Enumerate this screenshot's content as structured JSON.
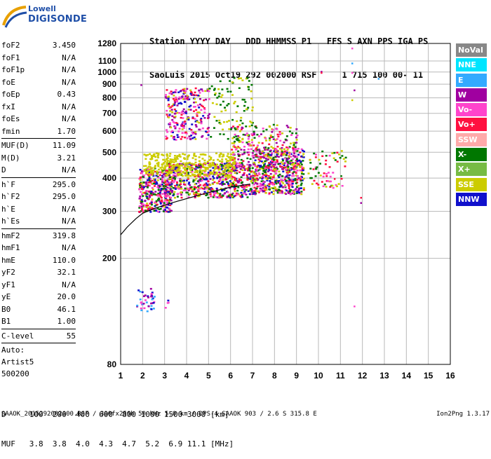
{
  "logo": {
    "brand": "Lowell",
    "product": "DIGISONDE"
  },
  "header": {
    "line1": "Station YYYY DAY   DDD HHMMSS P1   FFS S AXN PPS IGA PS",
    "line2": "SaoLuis 2015 Oct19 292 002000 RSF     1 715 100 00- 11"
  },
  "params": [
    {
      "label": "foF2",
      "value": "3.450"
    },
    {
      "label": "foF1",
      "value": "N/A"
    },
    {
      "label": "foF1p",
      "value": "N/A"
    },
    {
      "label": "foE",
      "value": "N/A"
    },
    {
      "label": "foEp",
      "value": "0.43"
    },
    {
      "label": "fxI",
      "value": "N/A"
    },
    {
      "label": "foEs",
      "value": "N/A"
    },
    {
      "label": "fmin",
      "value": "1.70"
    },
    {
      "sep": true
    },
    {
      "label": "MUF(D)",
      "value": "11.09"
    },
    {
      "label": "M(D)",
      "value": "3.21"
    },
    {
      "label": "D",
      "value": "N/A"
    },
    {
      "sep": true
    },
    {
      "label": "h`F",
      "value": "295.0"
    },
    {
      "label": "h`F2",
      "value": "295.0"
    },
    {
      "label": "h`E",
      "value": "N/A"
    },
    {
      "label": "h`Es",
      "value": "N/A"
    },
    {
      "sep": true
    },
    {
      "label": "hmF2",
      "value": "319.8"
    },
    {
      "label": "hmF1",
      "value": "N/A"
    },
    {
      "label": "hmE",
      "value": "110.0"
    },
    {
      "label": "yF2",
      "value": "32.1"
    },
    {
      "label": "yF1",
      "value": "N/A"
    },
    {
      "label": "yE",
      "value": "20.0"
    },
    {
      "label": "B0",
      "value": "46.1"
    },
    {
      "label": "B1",
      "value": "1.00"
    },
    {
      "sep": true
    },
    {
      "label": "C-level",
      "value": "55"
    },
    {
      "sep": true
    },
    {
      "text": "Auto:"
    },
    {
      "text": "Artist5"
    },
    {
      "text": "500200"
    }
  ],
  "legend": [
    {
      "label": "NoVal",
      "bg": "#888888",
      "fg": "#ffffff"
    },
    {
      "label": "NNE",
      "bg": "#00e5ff",
      "fg": "#ffffff"
    },
    {
      "label": "E",
      "bg": "#33aaff",
      "fg": "#ffffff"
    },
    {
      "label": "W",
      "bg": "#a000a0",
      "fg": "#ffffff"
    },
    {
      "label": "Vo-",
      "bg": "#ff44cc",
      "fg": "#ffffff"
    },
    {
      "label": "Vo+",
      "bg": "#ff1040",
      "fg": "#ffffff"
    },
    {
      "label": "SSW",
      "bg": "#ffaaaa",
      "fg": "#ffffff"
    },
    {
      "label": "X-",
      "bg": "#007700",
      "fg": "#ffffff"
    },
    {
      "label": "X+",
      "bg": "#77bb44",
      "fg": "#ffffff"
    },
    {
      "label": "SSE",
      "bg": "#cccc00",
      "fg": "#ffffff"
    },
    {
      "label": "NNW",
      "bg": "#1010cc",
      "fg": "#ffffff"
    }
  ],
  "footer": {
    "line1": "D     100  200  400  600  800 1000 1500 3000 [km]",
    "line2": "MUF   3.8  3.8  4.0  4.3  4.7  5.2  6.9 11.1 [MHz]"
  },
  "bottom": {
    "left": "SAAOK_2015292002000.RSF / 300fx256h 50 kHz 5.0 km / DPS-4 SAAOK 903 / 2.6 S 315.8 E",
    "right": "Ion2Png 1.3.17"
  },
  "chart_data": {
    "type": "scatter",
    "title": "",
    "xlabel": "",
    "ylabel": "",
    "xlim": [
      1,
      16
    ],
    "ylim": [
      80,
      1280
    ],
    "y_scale": "log",
    "grid": true,
    "x_ticks": [
      1,
      2,
      3,
      4,
      5,
      6,
      7,
      8,
      9,
      10,
      11,
      12,
      13,
      14,
      15,
      16
    ],
    "y_ticks": [
      80,
      200,
      300,
      400,
      500,
      600,
      700,
      800,
      900,
      1000,
      1100,
      1280
    ],
    "trace_curve": {
      "color": "#000000",
      "x": [
        1.0,
        1.3,
        1.7,
        2.0,
        2.5,
        3.0,
        3.5,
        4.0,
        5.0,
        6.0,
        6.9
      ],
      "y": [
        245,
        262,
        282,
        295,
        307,
        317,
        326,
        335,
        353,
        370,
        380
      ]
    },
    "echo_regions": [
      {
        "name": "E-layer",
        "f": [
          1.7,
          2.5
        ],
        "h": [
          125,
          155
        ],
        "colors": [
          "#1010cc",
          "#a000a0",
          "#33aaff",
          "#ff44cc"
        ],
        "n": 40
      },
      {
        "name": "E-layer-2",
        "f": [
          3.0,
          3.2
        ],
        "h": [
          128,
          142
        ],
        "colors": [
          "#1010cc",
          "#ff44cc"
        ],
        "n": 4
      },
      {
        "name": "F-trace-main",
        "f": [
          1.8,
          3.3
        ],
        "h": [
          300,
          440
        ],
        "colors": [
          "#ff1040",
          "#ff44cc",
          "#a000a0",
          "#1010cc",
          "#cccc00",
          "#007700"
        ],
        "n": 380
      },
      {
        "name": "F-trace-mid",
        "f": [
          3.0,
          7.0
        ],
        "h": [
          340,
          460
        ],
        "colors": [
          "#ff1040",
          "#ff44cc",
          "#a000a0",
          "#1010cc",
          "#007700",
          "#cccc00"
        ],
        "n": 650
      },
      {
        "name": "F-trace-high",
        "f": [
          7.0,
          9.3
        ],
        "h": [
          350,
          520
        ],
        "colors": [
          "#ff1040",
          "#ff44cc",
          "#a000a0",
          "#007700",
          "#1010cc",
          "#cccc00"
        ],
        "n": 550
      },
      {
        "name": "F-spread-upper",
        "f": [
          6.0,
          9.0
        ],
        "h": [
          430,
          640
        ],
        "colors": [
          "#007700",
          "#cccc00",
          "#ff1040",
          "#a000a0",
          "#ff44cc"
        ],
        "n": 260
      },
      {
        "name": "SSE-band",
        "f": [
          2.0,
          6.2
        ],
        "h": [
          410,
          500
        ],
        "colors": [
          "#cccc00"
        ],
        "n": 340
      },
      {
        "name": "upper-cloud",
        "f": [
          3.0,
          5.0
        ],
        "h": [
          560,
          880
        ],
        "colors": [
          "#cccc00",
          "#a000a0",
          "#ff44cc",
          "#ff1040",
          "#1010cc"
        ],
        "n": 260
      },
      {
        "name": "upper-cloud-2",
        "f": [
          5.0,
          7.0
        ],
        "h": [
          560,
          960
        ],
        "colors": [
          "#cccc00",
          "#007700"
        ],
        "n": 90
      },
      {
        "name": "right-tail",
        "f": [
          9.5,
          11.2
        ],
        "h": [
          370,
          510
        ],
        "colors": [
          "#ff1040",
          "#ff44cc",
          "#cccc00",
          "#007700"
        ],
        "n": 70
      }
    ],
    "isolated_points": [
      {
        "x": 1.9,
        "y": 900,
        "color": "#a000a0"
      },
      {
        "x": 10.1,
        "y": 1010,
        "color": "#a000a0"
      },
      {
        "x": 10.1,
        "y": 1000,
        "color": "#ff1040"
      },
      {
        "x": 11.5,
        "y": 1235,
        "color": "#ff44cc"
      },
      {
        "x": 11.5,
        "y": 1085,
        "color": "#33aaff"
      },
      {
        "x": 11.5,
        "y": 1000,
        "color": "#ff44cc"
      },
      {
        "x": 11.6,
        "y": 860,
        "color": "#a000a0"
      },
      {
        "x": 11.5,
        "y": 790,
        "color": "#cccc00"
      },
      {
        "x": 12.7,
        "y": 950,
        "color": "#33aaff"
      },
      {
        "x": 11.9,
        "y": 340,
        "color": "#ff1040"
      },
      {
        "x": 11.9,
        "y": 325,
        "color": "#a000a0"
      },
      {
        "x": 11.6,
        "y": 133,
        "color": "#ff44cc"
      },
      {
        "x": 10.7,
        "y": 400,
        "color": "#ff1040"
      },
      {
        "x": 11.0,
        "y": 410,
        "color": "#007700"
      }
    ]
  }
}
